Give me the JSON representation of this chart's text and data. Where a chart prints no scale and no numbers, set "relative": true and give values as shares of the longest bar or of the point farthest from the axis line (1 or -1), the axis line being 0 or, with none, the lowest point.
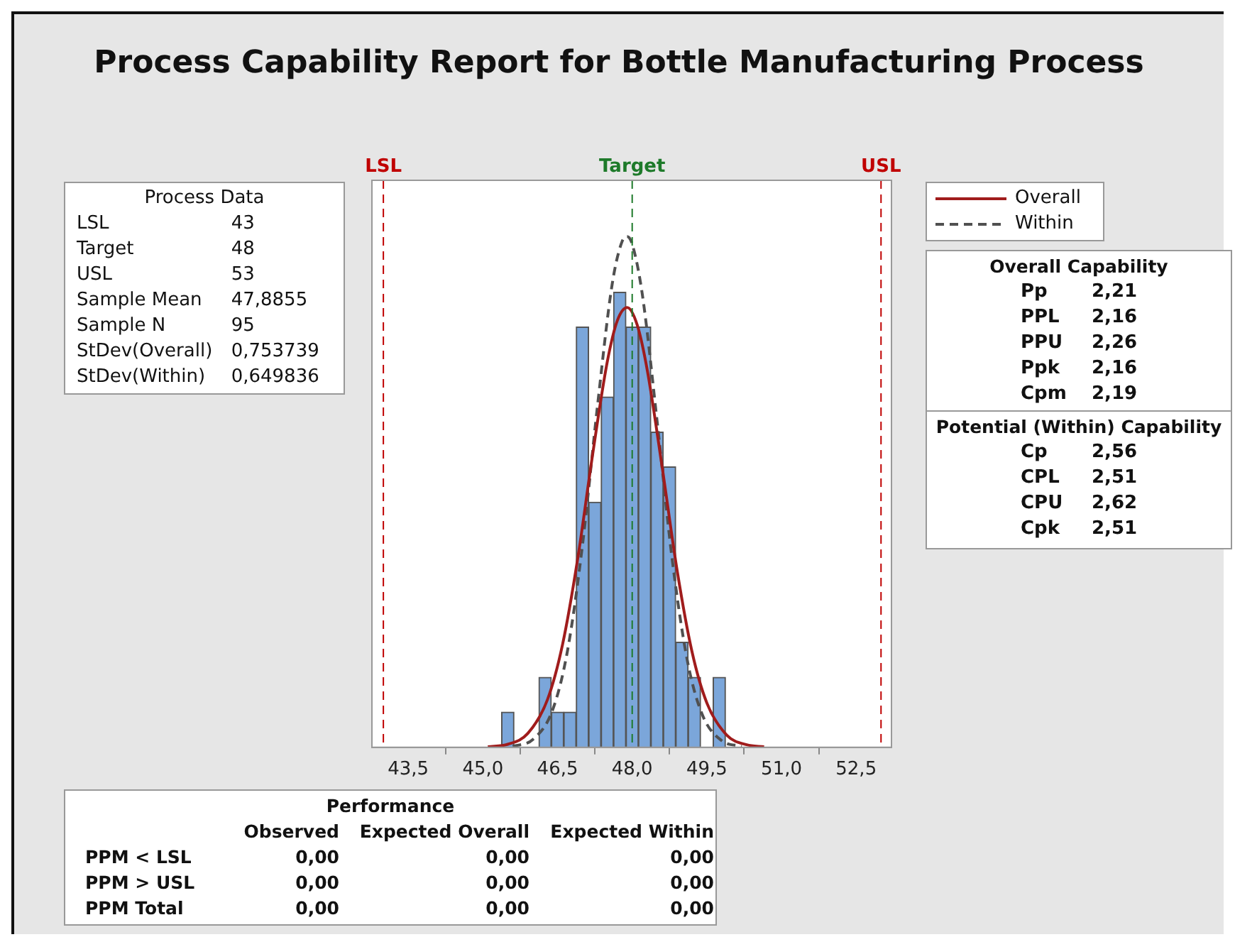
{
  "chart_data": {
    "type": "histogram",
    "title": "Process Capability Report for Bottle Manufacturing Process",
    "relative": true,
    "color": "#7ba6da",
    "bins": [
      45.375,
      45.625,
      45.875,
      46.125,
      46.375,
      46.625,
      46.875,
      47.125,
      47.375,
      47.625,
      47.875,
      48.125,
      48.375,
      48.625,
      48.875,
      49.125,
      49.375,
      49.625,
      49.875
    ],
    "values": [
      0.069,
      0,
      0,
      0.137,
      0.069,
      0.069,
      0.823,
      0.48,
      0.686,
      0.891,
      0.823,
      0.823,
      0.617,
      0.549,
      0.206,
      0.137,
      0,
      0.137
    ],
    "series": [
      {
        "name": "Overall",
        "type": "line",
        "color": "#a01c1c",
        "line_style": "solid",
        "x": [
          45.1,
          45.5,
          45.9,
          46.3,
          46.6,
          46.9,
          47.2,
          47.5,
          47.7,
          47.9,
          48.1,
          48.3,
          48.6,
          48.9,
          49.2,
          49.5,
          49.9,
          50.3,
          50.65
        ],
        "values": [
          0.001,
          0.006,
          0.027,
          0.094,
          0.201,
          0.366,
          0.57,
          0.755,
          0.835,
          0.861,
          0.827,
          0.74,
          0.55,
          0.348,
          0.188,
          0.087,
          0.024,
          0.005,
          0.001
        ]
      },
      {
        "name": "Within",
        "type": "line",
        "color": "#505050",
        "line_style": "dashed",
        "x": [
          45.6,
          46.0,
          46.4,
          46.7,
          47.0,
          47.3,
          47.6,
          47.8,
          47.9,
          48.0,
          48.2,
          48.5,
          48.8,
          49.1,
          49.4,
          49.8,
          50.2
        ],
        "values": [
          0.002,
          0.015,
          0.073,
          0.189,
          0.395,
          0.666,
          0.908,
          0.991,
          1.0,
          0.985,
          0.889,
          0.639,
          0.371,
          0.174,
          0.066,
          0.013,
          0.002
        ]
      }
    ],
    "xlim": [
      42.77,
      53.21
    ],
    "xticks": [
      {
        "value": 43.5,
        "label": "43,5"
      },
      {
        "value": 45,
        "label": "45,0"
      },
      {
        "value": 46.5,
        "label": "46,5"
      },
      {
        "value": 48,
        "label": "48,0"
      },
      {
        "value": 49.5,
        "label": "49,5"
      },
      {
        "value": 51,
        "label": "51,0"
      },
      {
        "value": 52.5,
        "label": "52,5"
      }
    ],
    "ref_lines": [
      {
        "axis": "x",
        "value": 43,
        "label": "LSL",
        "color": "#c00000",
        "line_style": "dashed"
      },
      {
        "axis": "x",
        "value": 48,
        "label": "Target",
        "color": "#1e7a2a",
        "line_style": "dashed"
      },
      {
        "axis": "x",
        "value": 53,
        "label": "USL",
        "color": "#c00000",
        "line_style": "dashed"
      }
    ],
    "legend": "top right",
    "marker": "none",
    "annotations": [
      "Process Data",
      "LSL\t43",
      "Target\t48",
      "USL\t53",
      "Sample Mean\t47,8855",
      "Sample N\t95",
      "StDev(Overall)\t0,753739",
      "StDev(Within)\t0,649836",
      "Overall Capability",
      "Pp\t2,21",
      "PPL\t2,16",
      "PPU\t2,26",
      "Ppk\t2,16",
      "Cpm\t2,19",
      "Potential (Within) Capability",
      "Cp\t2,56",
      "CPL\t2,51",
      "CPU\t2,62",
      "Cpk\t2,51",
      "Performance",
      "\tObserved\tExpected Overall\tExpected Within",
      "PPM < LSL\t0,00\t0,00\t0,00",
      "PPM > USL\t0,00\t0,00\t0,00",
      "PPM Total\t0,00\t0,00\t0,00"
    ]
  }
}
